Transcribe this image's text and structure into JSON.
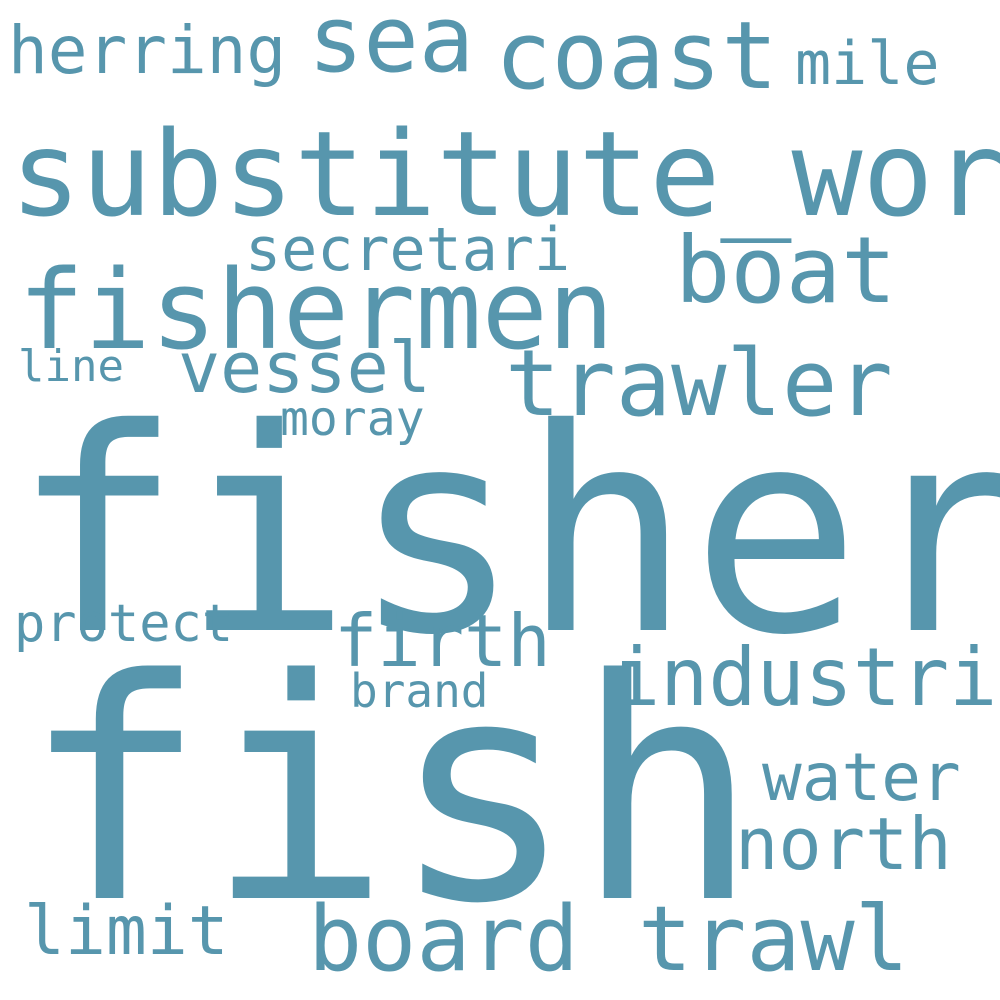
{
  "colors": {
    "word": "#5796ad",
    "background": "#ffffff"
  },
  "words": {
    "fisheri": "fisheri",
    "fish": "fish",
    "substitute_word": "substitute_word",
    "fishermen": "fishermen",
    "trawler": "trawler",
    "coast": "coast",
    "sea": "sea",
    "herring": "herring",
    "mile": "mile",
    "boat": "boat",
    "secretari": "secretari",
    "vessel": "vessel",
    "line": "line",
    "moray": "moray",
    "industri": "industri",
    "firth": "firth",
    "brand": "brand",
    "protect": "protect",
    "water": "water",
    "north": "north",
    "limit": "limit",
    "board": "board",
    "trawl": "trawl"
  }
}
